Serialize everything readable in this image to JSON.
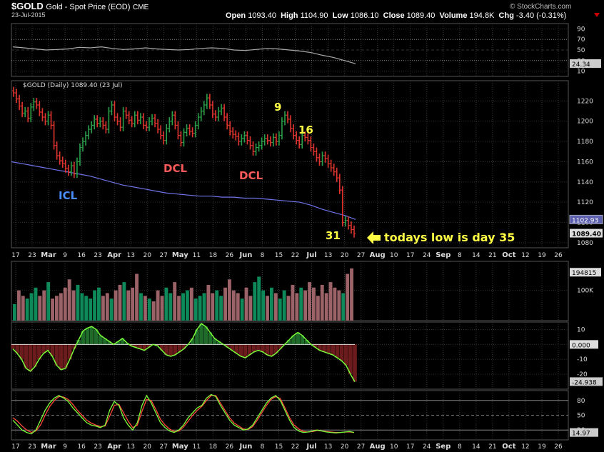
{
  "header": {
    "symbol": "$GOLD",
    "description": "Gold - Spot Price (EOD)",
    "exchange": "CME",
    "date": "23-Jul-2015",
    "open_label": "Open",
    "open": "1093.40",
    "high_label": "High",
    "high": "1104.90",
    "low_label": "Low",
    "low": "1086.10",
    "close_label": "Close",
    "close": "1089.40",
    "volume_label": "Volume",
    "volume": "194.8K",
    "chg_label": "Chg",
    "chg": "-3.40 (-0.31%)",
    "brand": "© StockCharts.com"
  },
  "colors": {
    "up": "#2aa14a",
    "down": "#e0352e",
    "ma": "#6f74e8",
    "vol_up": "#0e8a5a",
    "vol_down": "#9b6268",
    "macd_fill": "#6b1b1b",
    "macd_line": "#7bff3a",
    "stoch_fast": "#7bff3a",
    "stoch_slow": "#ff4a3a",
    "annot_yellow": "#ffff44",
    "annot_red": "#ff5a5a",
    "annot_blue": "#4a8dff"
  },
  "chart_data": {
    "type": "ohlc",
    "title": "$GOLD (Daily) 1089.40 (23 Jul)",
    "x_tick_labels": [
      "17",
      "23",
      "Mar",
      "9",
      "16",
      "23",
      "Apr",
      "13",
      "20",
      "27",
      "May",
      "11",
      "18",
      "26",
      "Jun",
      "8",
      "15",
      "22",
      "Jul",
      "13",
      "20",
      "27",
      "Aug",
      "10",
      "17",
      "24",
      "Sep",
      "8",
      "14",
      "21",
      "Oct",
      "12",
      "19",
      "26"
    ],
    "price": {
      "ylim": [
        1075,
        1240
      ],
      "yticks": [
        1080,
        1100,
        1120,
        1140,
        1160,
        1180,
        1200,
        1220
      ],
      "last_close_tag": "1089.40",
      "ma_tag": "1102.93",
      "close_series": [
        1228,
        1222,
        1215,
        1208,
        1210,
        1203,
        1214,
        1219,
        1216,
        1209,
        1204,
        1200,
        1206,
        1196,
        1176,
        1166,
        1161,
        1158,
        1153,
        1150,
        1156,
        1148,
        1160,
        1174,
        1180,
        1186,
        1192,
        1196,
        1202,
        1198,
        1200,
        1196,
        1192,
        1210,
        1216,
        1204,
        1200,
        1194,
        1210,
        1206,
        1201,
        1198,
        1206,
        1201,
        1204,
        1196,
        1194,
        1200,
        1203,
        1198,
        1192,
        1186,
        1181,
        1193,
        1200,
        1206,
        1196,
        1186,
        1179,
        1189,
        1193,
        1190,
        1188,
        1196,
        1204,
        1210,
        1216,
        1223,
        1216,
        1207,
        1204,
        1210,
        1213,
        1204,
        1196,
        1190,
        1187,
        1185,
        1180,
        1183,
        1186,
        1181,
        1176,
        1170,
        1174,
        1176,
        1180,
        1183,
        1181,
        1179,
        1184,
        1180,
        1186,
        1200,
        1206,
        1202,
        1193,
        1186,
        1181,
        1177,
        1186,
        1184,
        1181,
        1174,
        1170,
        1164,
        1160,
        1166,
        1163,
        1158,
        1154,
        1150,
        1144,
        1132,
        1100,
        1102,
        1097,
        1093,
        1089
      ],
      "ma200": [
        1160,
        1158,
        1156,
        1154,
        1152,
        1150,
        1148,
        1146,
        1143,
        1140,
        1137,
        1135,
        1133,
        1131,
        1129,
        1128,
        1127,
        1126,
        1126,
        1125,
        1125,
        1124,
        1124,
        1123,
        1122,
        1121,
        1120,
        1117,
        1113,
        1110,
        1107,
        1103
      ]
    },
    "annotations": [
      {
        "text": "ICL",
        "color": "blue"
      },
      {
        "text": "DCL",
        "color": "red"
      },
      {
        "text": "DCL",
        "color": "red"
      },
      {
        "text": "9",
        "color": "yellow"
      },
      {
        "text": "16",
        "color": "yellow"
      },
      {
        "text": "31",
        "color": "yellow"
      },
      {
        "text": "todays low is day 35",
        "color": "yellow",
        "arrow": "left"
      }
    ],
    "rsi": {
      "ylim": [
        0,
        100
      ],
      "yticks": [
        90,
        70,
        50,
        30,
        10
      ],
      "current_tag": "24.34",
      "series": [
        56,
        54,
        52,
        50,
        51,
        52,
        55,
        54,
        56,
        53,
        51,
        52,
        54,
        52,
        51,
        50,
        51,
        53,
        54,
        53,
        50,
        49,
        51,
        53,
        52,
        50,
        48,
        45,
        40,
        36,
        30,
        24
      ]
    },
    "volume": {
      "ytick_labels": [
        "100K"
      ],
      "current_tag": "194815",
      "values": [
        30,
        55,
        45,
        40,
        50,
        60,
        45,
        55,
        70,
        40,
        45,
        50,
        60,
        75,
        55,
        65,
        50,
        45,
        40,
        55,
        60,
        45,
        50,
        40,
        55,
        65,
        70,
        55,
        60,
        85,
        50,
        45,
        40,
        35,
        55,
        45,
        60,
        50,
        70,
        45,
        50,
        55,
        60,
        40,
        45,
        50,
        65,
        50,
        55,
        45,
        60,
        75,
        55,
        50,
        40,
        60,
        45,
        70,
        80,
        55,
        45,
        60,
        50,
        40,
        55,
        45,
        65,
        50,
        60,
        55,
        70,
        60,
        45,
        65,
        50,
        70,
        60,
        55,
        50,
        85,
        95
      ]
    },
    "macd": {
      "yticks": [
        10,
        0,
        -10,
        -20
      ],
      "zero_tag": "0.000",
      "current_tag": "-24.938",
      "series": [
        -3,
        -6,
        -10,
        -16,
        -18,
        -15,
        -10,
        -6,
        -4,
        -8,
        -14,
        -17,
        -16,
        -10,
        -3,
        3,
        9,
        11,
        12,
        10,
        6,
        4,
        2,
        0,
        2,
        4,
        1,
        -1,
        -2,
        -3,
        -4,
        -2,
        0,
        -1,
        -4,
        -7,
        -8,
        -7,
        -5,
        -3,
        0,
        4,
        10,
        14,
        12,
        8,
        4,
        2,
        0,
        -2,
        -4,
        -6,
        -8,
        -9,
        -7,
        -5,
        -4,
        -5,
        -7,
        -8,
        -6,
        -3,
        0,
        3,
        6,
        8,
        6,
        3,
        0,
        -2,
        -4,
        -5,
        -6,
        -7,
        -9,
        -11,
        -14,
        -20,
        -25
      ]
    },
    "stochastic": {
      "yticks": [
        80,
        50,
        20
      ],
      "current_tag": "14.97",
      "fast": [
        40,
        30,
        20,
        15,
        12,
        20,
        40,
        60,
        75,
        85,
        90,
        85,
        78,
        65,
        55,
        45,
        35,
        30,
        28,
        25,
        30,
        60,
        78,
        70,
        45,
        30,
        20,
        35,
        70,
        90,
        75,
        55,
        35,
        25,
        18,
        15,
        20,
        30,
        45,
        55,
        65,
        70,
        85,
        92,
        88,
        70,
        55,
        40,
        30,
        25,
        20,
        22,
        30,
        45,
        60,
        75,
        85,
        90,
        80,
        60,
        40,
        25,
        18,
        15,
        16,
        18,
        20,
        18,
        16,
        15,
        14,
        15,
        16,
        17,
        15
      ],
      "slow": [
        45,
        38,
        28,
        20,
        15,
        18,
        30,
        50,
        68,
        80,
        88,
        87,
        82,
        72,
        60,
        50,
        40,
        34,
        30,
        27,
        28,
        48,
        70,
        72,
        55,
        38,
        25,
        30,
        58,
        82,
        80,
        62,
        42,
        30,
        22,
        17,
        18,
        26,
        38,
        50,
        60,
        68,
        80,
        90,
        90,
        75,
        60,
        45,
        34,
        28,
        22,
        21,
        27,
        40,
        55,
        70,
        82,
        88,
        84,
        65,
        45,
        30,
        22,
        17,
        16,
        17,
        19,
        18,
        17,
        16,
        15,
        15,
        16,
        16,
        15
      ]
    }
  }
}
